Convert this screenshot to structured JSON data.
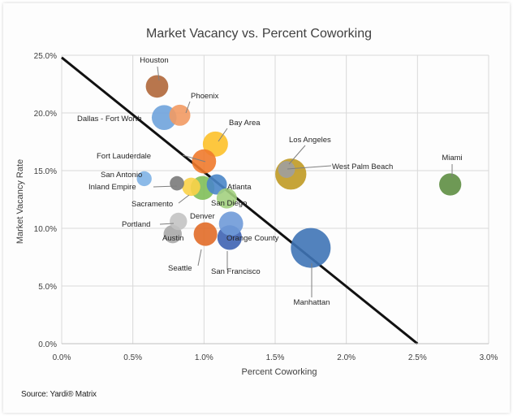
{
  "source_note": "Source: Yardi® Matrix",
  "chart_data": {
    "type": "scatter",
    "title": "Market Vacancy vs. Percent Coworking",
    "xlabel": "Percent Coworking",
    "ylabel": "Market Vacancy Rate",
    "xlim": [
      0,
      0.03
    ],
    "ylim": [
      0,
      0.25
    ],
    "xticks": [
      "0.0%",
      "0.5%",
      "1.0%",
      "1.5%",
      "2.0%",
      "2.5%",
      "3.0%"
    ],
    "yticks": [
      "0.0%",
      "5.0%",
      "10.0%",
      "15.0%",
      "20.0%",
      "25.0%"
    ],
    "grid": true,
    "trendline": {
      "x": [
        0,
        0.025
      ],
      "y": [
        0.248,
        0.0
      ],
      "color": "#111111"
    },
    "points": [
      {
        "label": "Houston",
        "x": 0.0067,
        "y": 0.223,
        "size": 3.2,
        "color": "#b0673a"
      },
      {
        "label": "Phoenix",
        "x": 0.0083,
        "y": 0.198,
        "size": 2.8,
        "color": "#f29a63"
      },
      {
        "label": "Dallas - Fort Worth",
        "x": 0.0072,
        "y": 0.196,
        "size": 3.9,
        "color": "#6fa3dc"
      },
      {
        "label": "Bay Area",
        "x": 0.0108,
        "y": 0.173,
        "size": 4.0,
        "color": "#fdc12a"
      },
      {
        "label": "Fort Lauderdale",
        "x": 0.01,
        "y": 0.158,
        "size": 3.7,
        "color": "#ef7a2c"
      },
      {
        "label": "Los Angeles",
        "x": 0.0161,
        "y": 0.147,
        "size": 6.1,
        "color": "#c09a24"
      },
      {
        "label": "West Palm Beach",
        "x": 0.0158,
        "y": 0.151,
        "size": 1.8,
        "color": "#9e9e9e"
      },
      {
        "label": "Miami",
        "x": 0.0273,
        "y": 0.138,
        "size": 3.1,
        "color": "#5e8e42"
      },
      {
        "label": "San Antonio",
        "x": 0.0058,
        "y": 0.143,
        "size": 1.4,
        "color": "#7fb2e5"
      },
      {
        "label": "Inland Empire",
        "x": 0.0081,
        "y": 0.139,
        "size": 1.3,
        "color": "#7a7a7a"
      },
      {
        "label": "Atlanta",
        "x": 0.0109,
        "y": 0.138,
        "size": 2.6,
        "color": "#4a86c8"
      },
      {
        "label": "Sacramento",
        "x": 0.0091,
        "y": 0.136,
        "size": 2.1,
        "color": "#fbd148"
      },
      {
        "label": "San Diego",
        "x": 0.0099,
        "y": 0.135,
        "size": 3.6,
        "color": "#7fbf59"
      },
      {
        "label": "Denver",
        "x": 0.0116,
        "y": 0.126,
        "size": 2.6,
        "color": "#a3d07f"
      },
      {
        "label": "Portland",
        "x": 0.0082,
        "y": 0.106,
        "size": 1.9,
        "color": "#c3c3c3"
      },
      {
        "label": "Austin",
        "x": 0.0078,
        "y": 0.095,
        "size": 2.1,
        "color": "#a8a8a8"
      },
      {
        "label": "Orange County",
        "x": 0.0119,
        "y": 0.104,
        "size": 3.7,
        "color": "#6f9ad8"
      },
      {
        "label": "Seattle",
        "x": 0.0101,
        "y": 0.095,
        "size": 3.5,
        "color": "#e16c28"
      },
      {
        "label": "San Francisco",
        "x": 0.0118,
        "y": 0.092,
        "size": 3.8,
        "color": "#3e63b3"
      },
      {
        "label": "Manhattan",
        "x": 0.0175,
        "y": 0.083,
        "size": 10.0,
        "color": "#3f74b6"
      }
    ]
  }
}
